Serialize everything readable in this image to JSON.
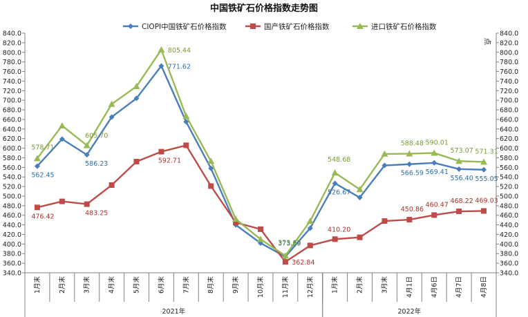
{
  "chart_data": {
    "type": "line",
    "title": "中国铁矿石价格指数走势图",
    "right_unit": "点",
    "ylim": [
      340,
      840
    ],
    "ytick_step": 20,
    "grid": false,
    "legend_position": "top",
    "categories": [
      "1月末",
      "2月末",
      "3月末",
      "4月末",
      "5月末",
      "6月末",
      "7月末",
      "8月末",
      "9月末",
      "10月末",
      "11月末",
      "12月末",
      "1月末",
      "2月末",
      "3月末",
      "4月1日",
      "4月6日",
      "4月7日",
      "4月8日"
    ],
    "groups": [
      {
        "label": "2021年",
        "start": 0,
        "end": 11
      },
      {
        "label": "2022年",
        "start": 12,
        "end": 18
      }
    ],
    "series": [
      {
        "name": "CIOPI中国铁矿石价格指数",
        "color": "#4a7ebb",
        "marker": "diamond",
        "values": [
          562.45,
          619,
          586.23,
          665,
          704,
          771.62,
          655,
          558,
          440,
          402,
          373.59,
          433,
          526.67,
          497,
          564,
          566.59,
          569.41,
          556.4,
          555.05
        ],
        "labels": {
          "0": "562.45",
          "2": "586.23",
          "5": "771.62",
          "10": "373.59",
          "12": "526.67",
          "15": "566.59",
          "16": "569.41",
          "17": "556.40",
          "18": "555.05"
        }
      },
      {
        "name": "国产铁矿石价格指数",
        "color": "#be4b48",
        "marker": "square",
        "values": [
          476.42,
          489,
          483.25,
          523,
          572,
          592.71,
          606,
          521,
          445,
          431,
          362.84,
          397,
          410.2,
          414,
          448,
          450.86,
          460.47,
          468.22,
          469.03
        ],
        "labels": {
          "0": "476.42",
          "2": "483.25",
          "5": "592.71",
          "10": "362.84",
          "12": "410.20",
          "15": "450.86",
          "16": "460.47",
          "17": "468.22",
          "18": "469.03"
        }
      },
      {
        "name": "进口铁矿石价格指数",
        "color": "#98b954",
        "marker": "triangle",
        "values": [
          578.71,
          647,
          605.7,
          692,
          729,
          805.44,
          667,
          573,
          452,
          410,
          375.63,
          448,
          548.68,
          514,
          588,
          588.48,
          590.01,
          573.07,
          571.31
        ],
        "labels": {
          "0": "578.71",
          "2": "605.70",
          "5": "805.44",
          "10": "375.63",
          "12": "548.68",
          "15": "588.48",
          "16": "590.01",
          "17": "573.07",
          "18": "571.31"
        }
      }
    ]
  }
}
